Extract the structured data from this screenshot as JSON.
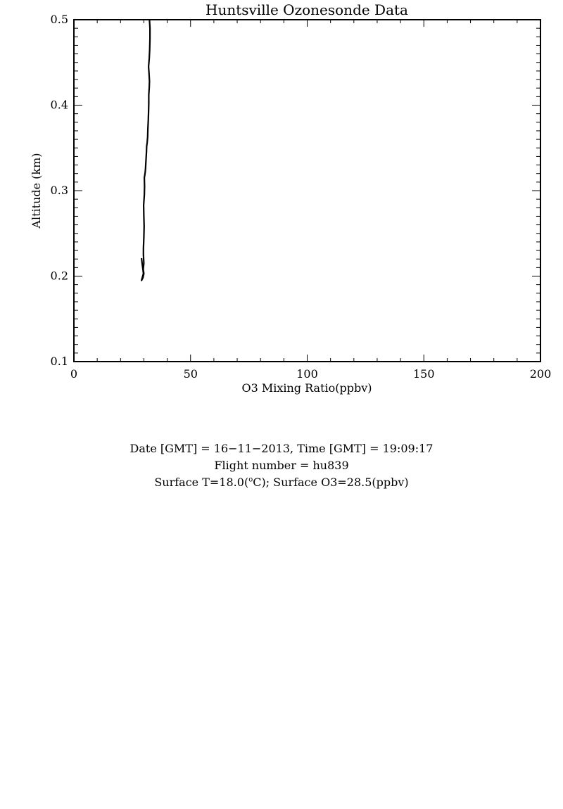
{
  "chart_data": {
    "type": "line",
    "title": "Huntsville Ozonesonde Data",
    "xlabel": "O3 Mixing Ratio(ppbv)",
    "ylabel": "Altitude (km)",
    "xlim": [
      0,
      200
    ],
    "ylim": [
      0.1,
      0.5
    ],
    "x_ticks": [
      0,
      50,
      100,
      150,
      200
    ],
    "x_tick_labels": [
      "0",
      "50",
      "100",
      "150",
      "200"
    ],
    "y_ticks": [
      0.1,
      0.2,
      0.3,
      0.4,
      0.5
    ],
    "y_tick_labels": [
      "0.1",
      "0.2",
      "0.3",
      "0.4",
      "0.5"
    ],
    "grid": false,
    "series": [
      {
        "color": "#000000",
        "points": [
          [
            29.0,
            0.221
          ],
          [
            29.3,
            0.214
          ],
          [
            29.6,
            0.208
          ],
          [
            29.8,
            0.203
          ],
          [
            29.2,
            0.197
          ],
          [
            29.0,
            0.195
          ],
          [
            29.6,
            0.198
          ],
          [
            30.0,
            0.203
          ],
          [
            29.7,
            0.208
          ],
          [
            30.0,
            0.215
          ],
          [
            29.8,
            0.225
          ],
          [
            29.8,
            0.232
          ],
          [
            30.0,
            0.245
          ],
          [
            30.1,
            0.258
          ],
          [
            30.0,
            0.27
          ],
          [
            29.9,
            0.283
          ],
          [
            30.2,
            0.295
          ],
          [
            30.3,
            0.305
          ],
          [
            30.2,
            0.315
          ],
          [
            30.6,
            0.322
          ],
          [
            30.7,
            0.326
          ],
          [
            30.9,
            0.335
          ],
          [
            31.1,
            0.345
          ],
          [
            31.2,
            0.352
          ],
          [
            31.4,
            0.356
          ],
          [
            31.6,
            0.363
          ],
          [
            31.7,
            0.372
          ],
          [
            31.9,
            0.382
          ],
          [
            32.0,
            0.392
          ],
          [
            32.1,
            0.402
          ],
          [
            32.1,
            0.412
          ],
          [
            32.3,
            0.421
          ],
          [
            32.4,
            0.428
          ],
          [
            32.2,
            0.438
          ],
          [
            32.0,
            0.445
          ],
          [
            32.3,
            0.455
          ],
          [
            32.5,
            0.465
          ],
          [
            32.6,
            0.478
          ],
          [
            32.6,
            0.49
          ],
          [
            32.4,
            0.5
          ]
        ]
      }
    ]
  },
  "info": {
    "line1": "Date [GMT] = 16−11−2013,  Time [GMT] = 19:09:17",
    "line2": "Flight number = hu839",
    "line3_prefix": "Surface T=18.0(",
    "line3_sup": "o",
    "line3_suffix": "C); Surface O3=28.5(ppbv)"
  }
}
